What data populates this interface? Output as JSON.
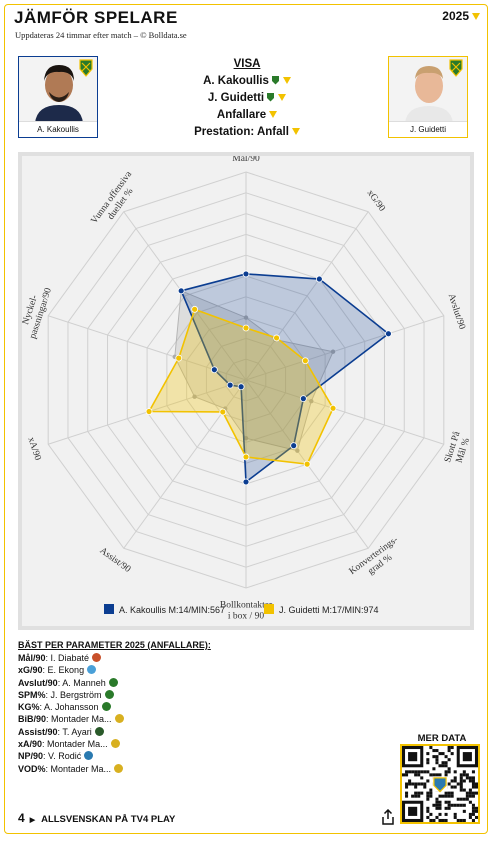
{
  "header": {
    "title": "JÄMFÖR SPELARE",
    "subtitle": "Uppdateras 24 timmar efter match – © Bolldata.se",
    "year": "2025"
  },
  "players": {
    "left": {
      "name": "A. Kakoullis",
      "color": "#0b3d91"
    },
    "right": {
      "name": "J. Guidetti",
      "color": "#f2c200"
    }
  },
  "menu": {
    "visa": "VISA",
    "player1": "A. Kakoullis",
    "player2": "J. Guidetti",
    "position": "Anfallare",
    "performance": "Prestation: Anfall"
  },
  "chart_data": {
    "type": "radar",
    "axes": [
      "Mål/90",
      "xG/90",
      "Avslut/90",
      "Skott På Mål %",
      "Konverterings-grad %",
      "Bollkontakter i box / 90",
      "Assist/90",
      "xA/90",
      "Nyckel-passningar/90",
      "Vunna offensiva dueller %"
    ],
    "rmax": 10,
    "series": [
      {
        "name": "A. Kakoullis M:14/MIN:567",
        "color": "#0b3d91",
        "values": [
          5.1,
          6.0,
          7.2,
          2.9,
          3.9,
          4.9,
          0.4,
          0.8,
          1.6,
          5.3
        ]
      },
      {
        "name": "J. Guidetti M:17/MIN:974",
        "color": "#f2c200",
        "values": [
          2.5,
          2.5,
          3.0,
          4.4,
          5.0,
          3.7,
          1.9,
          4.9,
          3.4,
          4.2
        ]
      }
    ],
    "grey_values": [
      3.0,
      2.4,
      4.4,
      3.3,
      4.2,
      2.8,
      1.7,
      2.6,
      3.6,
      5.3
    ]
  },
  "best": {
    "heading": "BÄST PER PARAMETER 2025 (ANFALLARE):",
    "rows": [
      {
        "label": "Mål/90",
        "value": "I. Diabaté",
        "icon_color": "#c8502a"
      },
      {
        "label": "xG/90",
        "value": "E. Ekong",
        "icon_color": "#4aa0d8"
      },
      {
        "label": "Avslut/90",
        "value": "A. Manneh",
        "icon_color": "#2a7a2a"
      },
      {
        "label": "SPM%",
        "value": "J. Bergström",
        "icon_color": "#2a7a2a"
      },
      {
        "label": "KG%",
        "value": "A. Johansson",
        "icon_color": "#2a7a2a"
      },
      {
        "label": "BiB/90",
        "value": "Montader Ma...",
        "icon_color": "#d8b020"
      },
      {
        "label": "Assist/90",
        "value": "T. Ayari",
        "icon_color": "#2a5a2a"
      },
      {
        "label": "xA/90",
        "value": "Montader Ma...",
        "icon_color": "#d8b020"
      },
      {
        "label": "NP/90",
        "value": "V. Rodić",
        "icon_color": "#2a7ab0"
      },
      {
        "label": "VOD%",
        "value": "Montader Ma...",
        "icon_color": "#d8b020"
      }
    ]
  },
  "footer": {
    "channel_num": "4",
    "text": "ALLSVENSKAN PÅ TV4 PLAY",
    "mer_data": "MER DATA"
  }
}
